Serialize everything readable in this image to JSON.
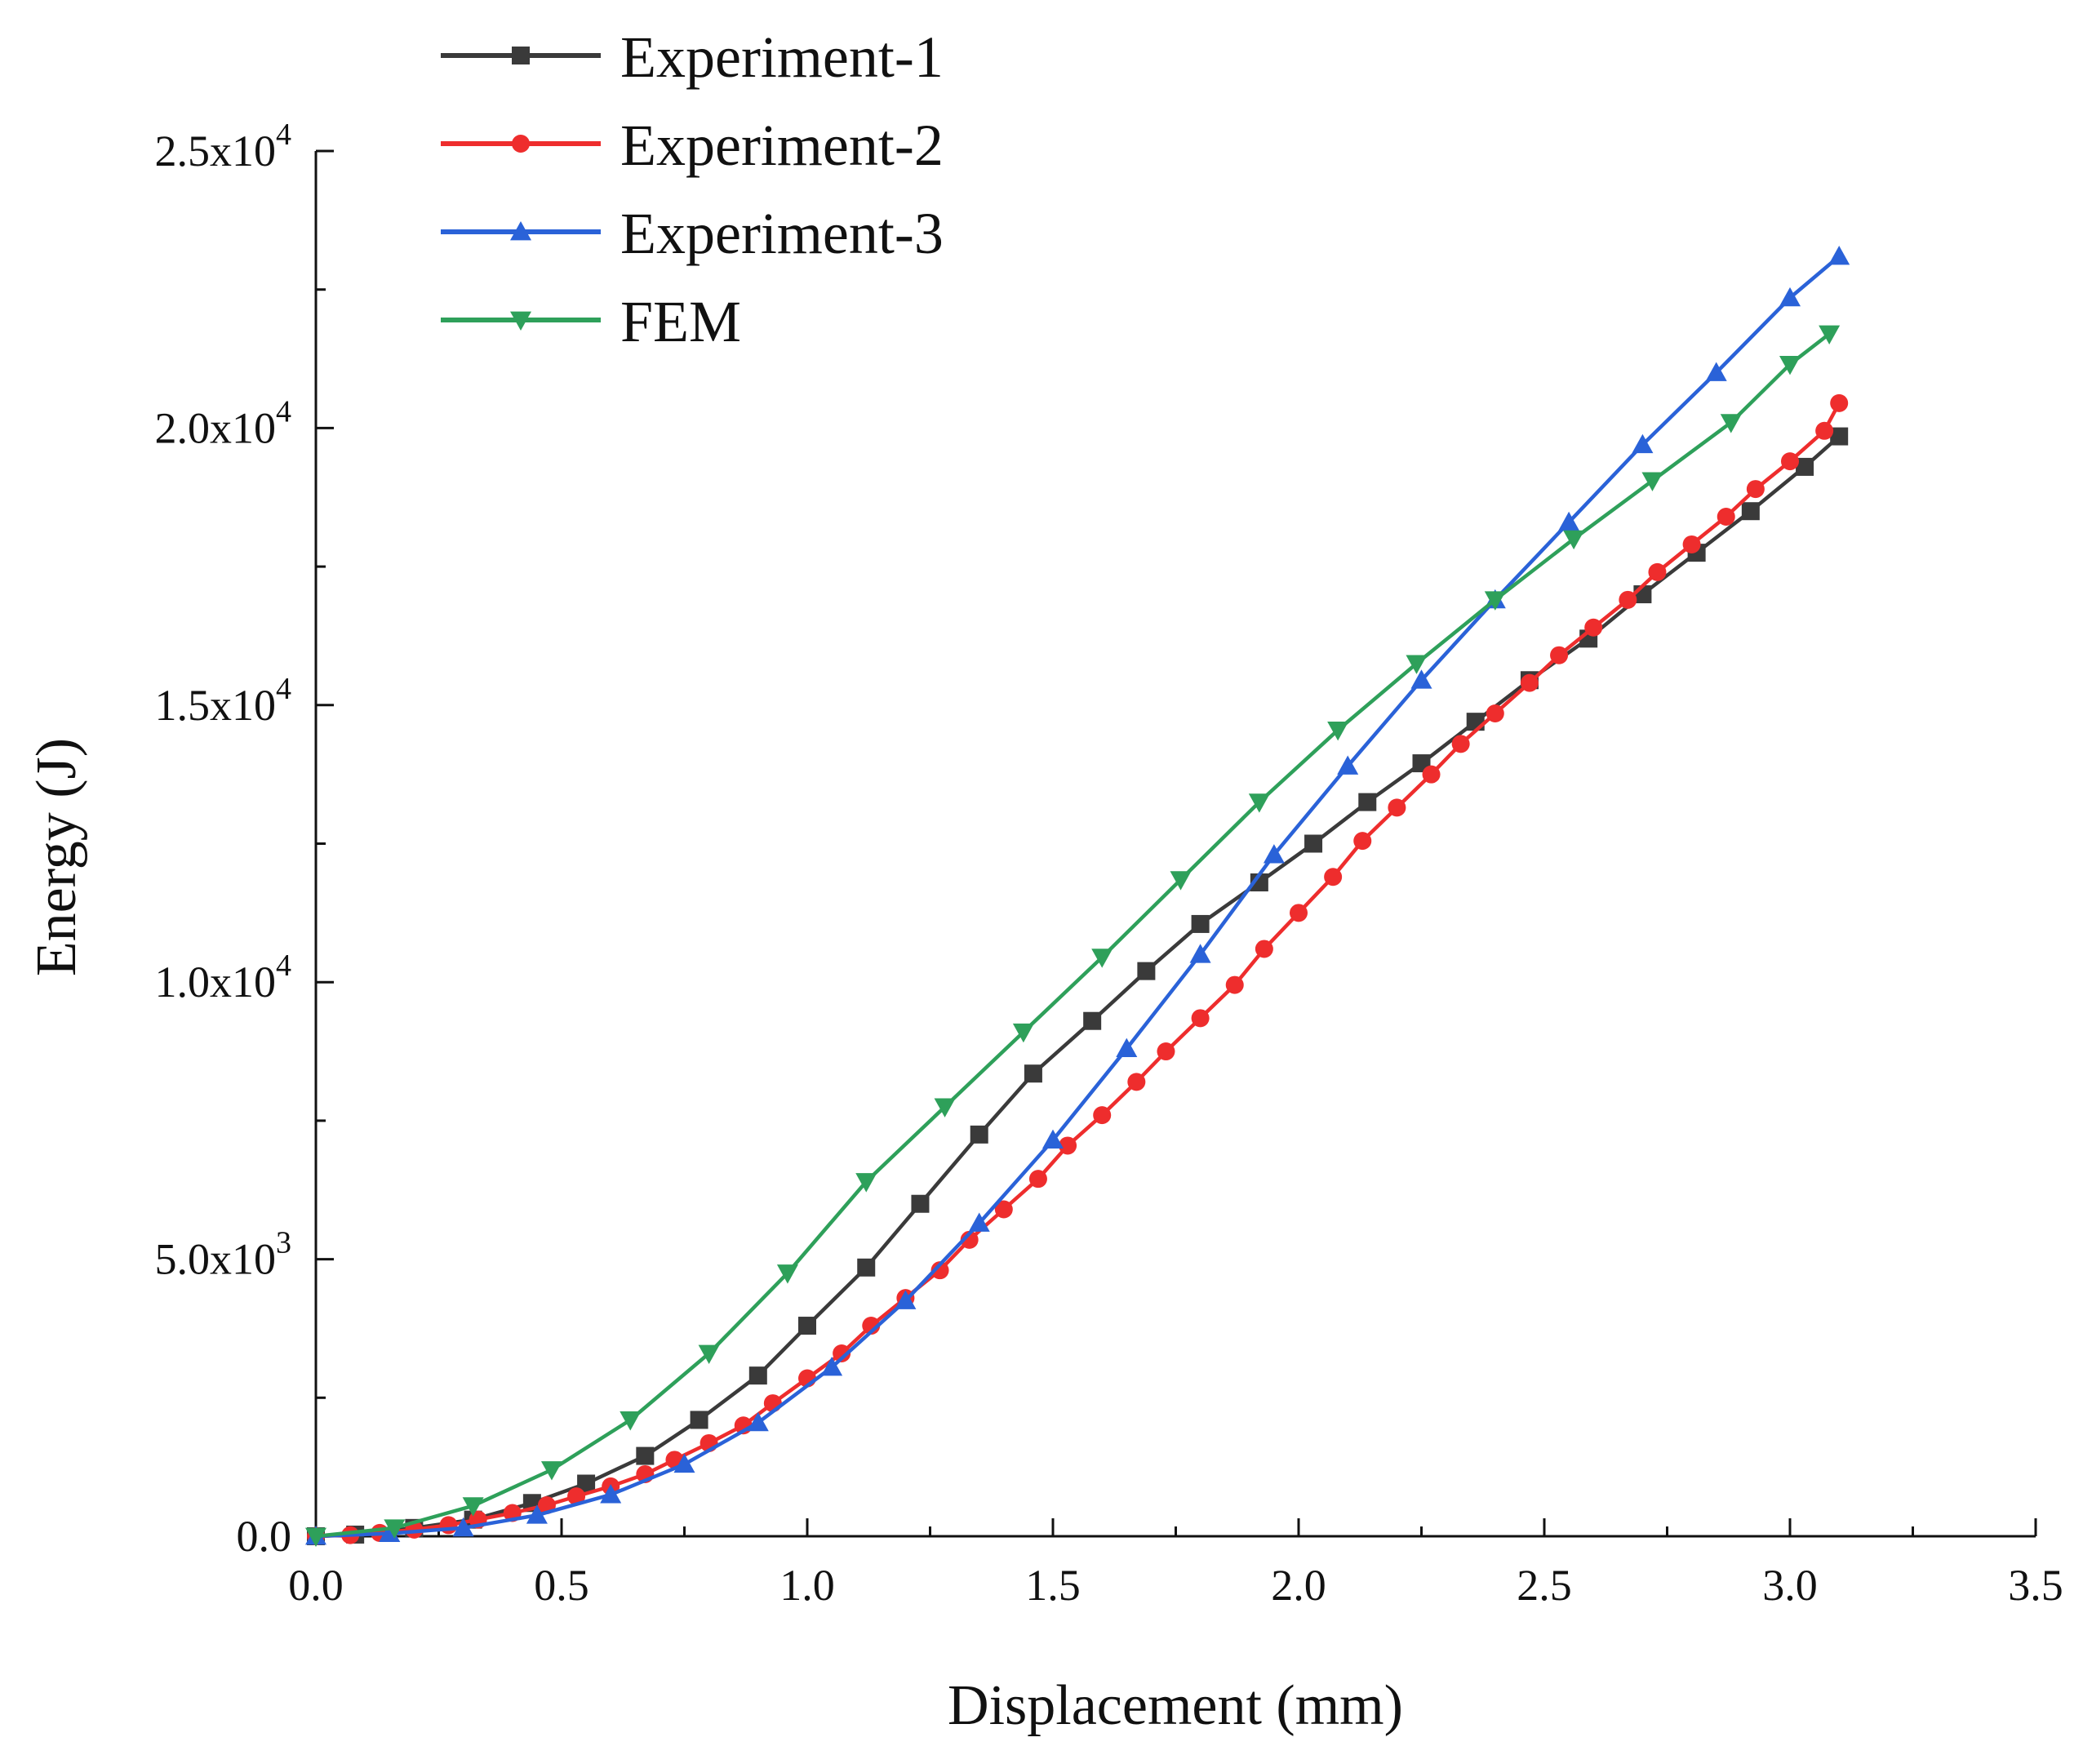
{
  "chart_data": {
    "type": "line",
    "title": "",
    "xlabel": "Displacement (mm)",
    "ylabel": "Energy (J)",
    "xlim": [
      0,
      3.5
    ],
    "ylim": [
      0,
      25000
    ],
    "x_ticks": [
      0,
      0.5,
      1.0,
      1.5,
      2.0,
      2.5,
      3.0,
      3.5
    ],
    "x_tick_labels": [
      "0.0",
      "0.5",
      "1.0",
      "1.5",
      "2.0",
      "2.5",
      "3.0",
      "3.5"
    ],
    "y_ticks": [
      0,
      5000,
      10000,
      15000,
      20000,
      25000
    ],
    "y_tick_labels": [
      {
        "mantissa": "0.0",
        "exp": ""
      },
      {
        "mantissa": "5.0x10",
        "exp": "3"
      },
      {
        "mantissa": "1.0x10",
        "exp": "4"
      },
      {
        "mantissa": "1.5x10",
        "exp": "4"
      },
      {
        "mantissa": "2.0x10",
        "exp": "4"
      },
      {
        "mantissa": "2.5x10",
        "exp": "4"
      }
    ],
    "grid": false,
    "legend_position": "top-left",
    "series": [
      {
        "name": "Experiment-1",
        "color": "#3a3a3a",
        "marker": "square",
        "x": [
          0.0,
          0.08,
          0.2,
          0.32,
          0.44,
          0.55,
          0.67,
          0.78,
          0.9,
          1.0,
          1.12,
          1.23,
          1.35,
          1.46,
          1.58,
          1.69,
          1.8,
          1.92,
          2.03,
          2.14,
          2.25,
          2.36,
          2.47,
          2.59,
          2.7,
          2.81,
          2.92,
          3.03,
          3.1
        ],
        "y": [
          0,
          30,
          150,
          300,
          600,
          950,
          1450,
          2100,
          2900,
          3800,
          4850,
          6000,
          7250,
          8350,
          9300,
          10200,
          11050,
          11800,
          12500,
          13250,
          13950,
          14700,
          15450,
          16200,
          17000,
          17750,
          18500,
          19300,
          19850
        ]
      },
      {
        "name": "Experiment-2",
        "color": "#ee2d2d",
        "marker": "circle",
        "x": [
          0.0,
          0.07,
          0.13,
          0.2,
          0.27,
          0.33,
          0.4,
          0.47,
          0.53,
          0.6,
          0.67,
          0.73,
          0.8,
          0.87,
          0.93,
          1.0,
          1.07,
          1.13,
          1.2,
          1.27,
          1.33,
          1.4,
          1.47,
          1.53,
          1.6,
          1.67,
          1.73,
          1.8,
          1.87,
          1.93,
          2.0,
          2.07,
          2.13,
          2.2,
          2.27,
          2.33,
          2.4,
          2.47,
          2.53,
          2.6,
          2.67,
          2.73,
          2.8,
          2.87,
          2.93,
          3.0,
          3.07,
          3.1
        ],
        "y": [
          0,
          20,
          60,
          120,
          200,
          300,
          420,
          560,
          720,
          900,
          1120,
          1380,
          1680,
          2000,
          2400,
          2850,
          3300,
          3800,
          4300,
          4800,
          5350,
          5900,
          6450,
          7050,
          7600,
          8200,
          8750,
          9350,
          9950,
          10600,
          11250,
          11900,
          12550,
          13150,
          13750,
          14300,
          14850,
          15400,
          15900,
          16400,
          16900,
          17400,
          17900,
          18400,
          18900,
          19400,
          19950,
          20450
        ]
      },
      {
        "name": "Experiment-3",
        "color": "#2a62d8",
        "marker": "triangle-up",
        "x": [
          0.0,
          0.15,
          0.3,
          0.45,
          0.6,
          0.75,
          0.9,
          1.05,
          1.2,
          1.35,
          1.5,
          1.65,
          1.8,
          1.95,
          2.1,
          2.25,
          2.4,
          2.55,
          2.7,
          2.85,
          3.0,
          3.1
        ],
        "y": [
          0,
          50,
          150,
          380,
          750,
          1300,
          2050,
          3050,
          4250,
          5650,
          7150,
          8800,
          10500,
          12300,
          13900,
          15450,
          16900,
          18300,
          19700,
          21000,
          22350,
          23100
        ]
      },
      {
        "name": "FEM",
        "color": "#2ea05a",
        "marker": "triangle-down",
        "x": [
          0.0,
          0.16,
          0.32,
          0.48,
          0.64,
          0.8,
          0.96,
          1.12,
          1.28,
          1.44,
          1.6,
          1.76,
          1.92,
          2.08,
          2.24,
          2.4,
          2.56,
          2.72,
          2.88,
          3.0,
          3.08
        ],
        "y": [
          0,
          150,
          550,
          1200,
          2100,
          3300,
          4750,
          6400,
          7750,
          9100,
          10450,
          11850,
          13250,
          14550,
          15750,
          16900,
          18000,
          19050,
          20100,
          21150,
          21700
        ]
      }
    ]
  }
}
